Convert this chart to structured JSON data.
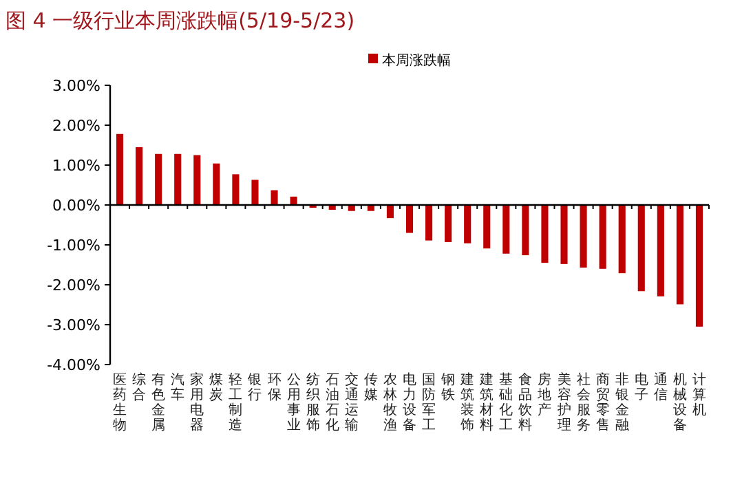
{
  "chart_data": {
    "type": "bar",
    "title": "图 4 一级行业本周涨跌幅(5/19-5/23)",
    "categories": [
      "医药生物",
      "综合",
      "有色金属",
      "汽车",
      "家用电器",
      "煤炭",
      "轻工制造",
      "银行",
      "环保",
      "公用事业",
      "纺织服饰",
      "石油石化",
      "交通运输",
      "传媒",
      "农林牧渔",
      "电力设备",
      "国防军工",
      "钢铁",
      "建筑装饰",
      "建筑材料",
      "基础化工",
      "食品饮料",
      "房地产",
      "美容护理",
      "社会服务",
      "商贸零售",
      "非银金融",
      "电子",
      "通信",
      "机械设备",
      "计算机"
    ],
    "series": [
      {
        "name": "本周涨跌幅",
        "color": "#c00000",
        "values": [
          1.78,
          1.45,
          1.28,
          1.28,
          1.25,
          1.04,
          0.77,
          0.63,
          0.37,
          0.21,
          -0.07,
          -0.12,
          -0.15,
          -0.15,
          -0.33,
          -0.7,
          -0.89,
          -0.93,
          -0.96,
          -1.09,
          -1.22,
          -1.26,
          -1.45,
          -1.48,
          -1.57,
          -1.6,
          -1.71,
          -2.16,
          -2.29,
          -2.49,
          -3.05
        ]
      }
    ],
    "ylim": [
      -4,
      3
    ],
    "yticks": [
      {
        "value": -4,
        "label": "-4.00%"
      },
      {
        "value": -3,
        "label": "-3.00%"
      },
      {
        "value": -2,
        "label": "-2.00%"
      },
      {
        "value": -1,
        "label": "-1.00%"
      },
      {
        "value": 0,
        "label": "0.00%"
      },
      {
        "value": 1,
        "label": "1.00%"
      },
      {
        "value": 2,
        "label": "2.00%"
      },
      {
        "value": 3,
        "label": "3.00%"
      }
    ],
    "legend": "top"
  }
}
